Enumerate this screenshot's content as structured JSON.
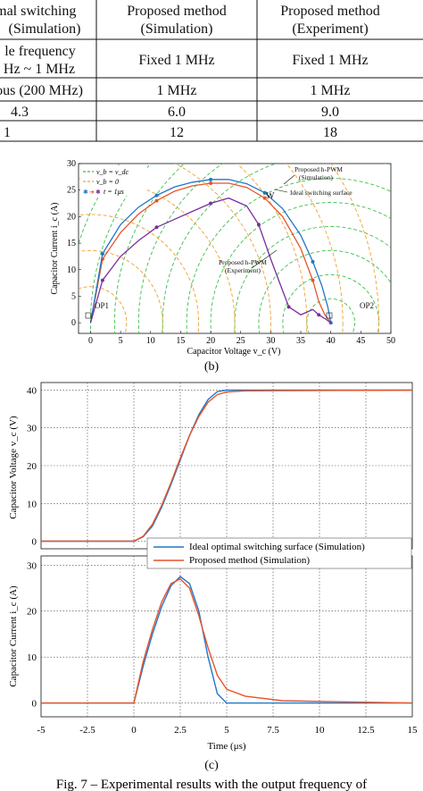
{
  "table": {
    "rows": [
      [
        "imal switching",
        "Proposed method",
        "Proposed method"
      ],
      [
        "(Simulation)",
        "(Simulation)",
        "(Experiment)"
      ],
      [
        "le frequency",
        "Fixed 1 MHz",
        "Fixed 1 MHz"
      ],
      [
        "Hz ~ 1 MHz",
        "",
        ""
      ],
      [
        "ous (200 MHz)",
        "1 MHz",
        "1 MHz"
      ],
      [
        "4.3",
        "6.0",
        "9.0"
      ],
      [
        "1",
        "12",
        "18"
      ]
    ]
  },
  "phase_plot": {
    "legend": [
      "v_b = v_dc",
      "v_b = 0",
      "t = 1μs"
    ],
    "annotations": {
      "sim": [
        "Proposed h-PWM",
        "(Simulation)"
      ],
      "ideal": "Ideal switching surface",
      "w": "W",
      "exp": [
        "Proposed h-PWM",
        "(Experiment)"
      ],
      "op1": "OP1",
      "op2": "OP2"
    },
    "xlabel": "Capacitor Voltage v_c (V)",
    "ylabel": "Capacitor Current i_c (A)",
    "caption": "(b)"
  },
  "time_plot": {
    "legend": [
      "Ideal optimal switching surface (Simulation)",
      "Proposed method (Simulation)"
    ],
    "ylabel_top": "Capacitor Voltage v_c (V)",
    "ylabel_bottom": "Capacitor Current i_c (A)",
    "xlabel": "Time (μs)",
    "caption": "(c)"
  },
  "fig_caption": "Fig. 7 – Experimental results with the output frequency of",
  "chart_data": [
    {
      "type": "line",
      "xlim": [
        -2,
        50
      ],
      "ylim": [
        -2,
        30
      ],
      "xticks": [
        0,
        5,
        10,
        15,
        20,
        25,
        30,
        35,
        40,
        45,
        50
      ],
      "yticks": [
        0,
        5,
        10,
        15,
        20,
        25,
        30
      ],
      "grid": false,
      "legend_position": "top-left",
      "series": [
        {
          "name": "Proposed h-PWM (Simulation)",
          "color": "#e8542a",
          "x": [
            0,
            2,
            5,
            8,
            11,
            14,
            17,
            20,
            23,
            26,
            29,
            32,
            35,
            37,
            38,
            39,
            40
          ],
          "y": [
            0,
            12,
            17,
            20.5,
            23,
            24.8,
            25.8,
            26.3,
            26.3,
            25.5,
            23.5,
            20,
            14,
            8,
            4,
            1.5,
            0
          ]
        },
        {
          "name": "Ideal switching surface",
          "color": "#1f77c8",
          "x": [
            0,
            2,
            5,
            8,
            11,
            14,
            17,
            20,
            23,
            26,
            29,
            32,
            35,
            37,
            38.5,
            39.5,
            40
          ],
          "y": [
            0,
            13,
            18.5,
            21.8,
            24,
            25.6,
            26.5,
            27,
            27,
            26.2,
            24.5,
            21.5,
            16.5,
            11.5,
            7,
            3,
            0
          ]
        },
        {
          "name": "Proposed h-PWM (Experiment)",
          "color": "#7a2ea0",
          "x": [
            0,
            2,
            5,
            8,
            11,
            14,
            17,
            20,
            23,
            26,
            28,
            30,
            32,
            33,
            35,
            37,
            38,
            39,
            40
          ],
          "y": [
            0,
            8,
            12.5,
            15.5,
            18,
            19.5,
            21,
            22.5,
            23.5,
            22,
            18.5,
            12,
            6,
            3,
            1.5,
            2.5,
            1.5,
            0.8,
            0
          ]
        }
      ]
    },
    {
      "type": "line",
      "xlabel": "Time (μs)",
      "ylabel": "Capacitor Voltage v_c (V)",
      "xlim": [
        -5,
        15
      ],
      "ylim": [
        -2,
        42
      ],
      "xticks": [
        -5,
        -2.5,
        0,
        2.5,
        5,
        7.5,
        10,
        12.5,
        15
      ],
      "yticks": [
        0,
        10,
        20,
        30,
        40
      ],
      "series": [
        {
          "name": "Ideal optimal switching surface (Simulation)",
          "color": "#1f77c8",
          "x": [
            -5,
            0,
            0.5,
            1,
            1.5,
            2,
            2.5,
            3,
            3.5,
            4,
            4.5,
            5,
            15
          ],
          "y": [
            0,
            0,
            1.2,
            4,
            9,
            15,
            21.5,
            28,
            33.5,
            37.5,
            39.6,
            40,
            40
          ]
        },
        {
          "name": "Proposed method (Simulation)",
          "color": "#e8542a",
          "x": [
            -5,
            0,
            0.5,
            1,
            1.5,
            2,
            2.5,
            3,
            3.5,
            4,
            4.5,
            5,
            6,
            15
          ],
          "y": [
            0,
            0,
            1.3,
            4.5,
            9.5,
            15.5,
            22,
            28,
            33,
            36.8,
            38.8,
            39.5,
            39.8,
            40
          ]
        }
      ]
    },
    {
      "type": "line",
      "xlabel": "Time (μs)",
      "ylabel": "Capacitor Current i_c (A)",
      "xlim": [
        -5,
        15
      ],
      "ylim": [
        -3,
        32
      ],
      "xticks": [
        -5,
        -2.5,
        0,
        2.5,
        5,
        7.5,
        10,
        12.5,
        15
      ],
      "yticks": [
        0,
        10,
        20,
        30
      ],
      "series": [
        {
          "name": "Ideal optimal switching surface (Simulation)",
          "color": "#1f77c8",
          "x": [
            -5,
            0,
            0.5,
            1,
            1.5,
            2,
            2.5,
            3,
            3.5,
            4,
            4.5,
            5,
            15
          ],
          "y": [
            0,
            0,
            8,
            15,
            21,
            25.5,
            27.5,
            26,
            20,
            10,
            2,
            0,
            0
          ]
        },
        {
          "name": "Proposed method (Simulation)",
          "color": "#e8542a",
          "x": [
            -5,
            0,
            0.5,
            1,
            1.5,
            2,
            2.5,
            3,
            3.5,
            4,
            4.5,
            5,
            6,
            8,
            15
          ],
          "y": [
            0,
            0,
            9,
            16,
            22,
            26,
            27,
            25,
            19,
            12,
            6,
            3,
            1.5,
            0.5,
            0
          ]
        }
      ]
    }
  ]
}
